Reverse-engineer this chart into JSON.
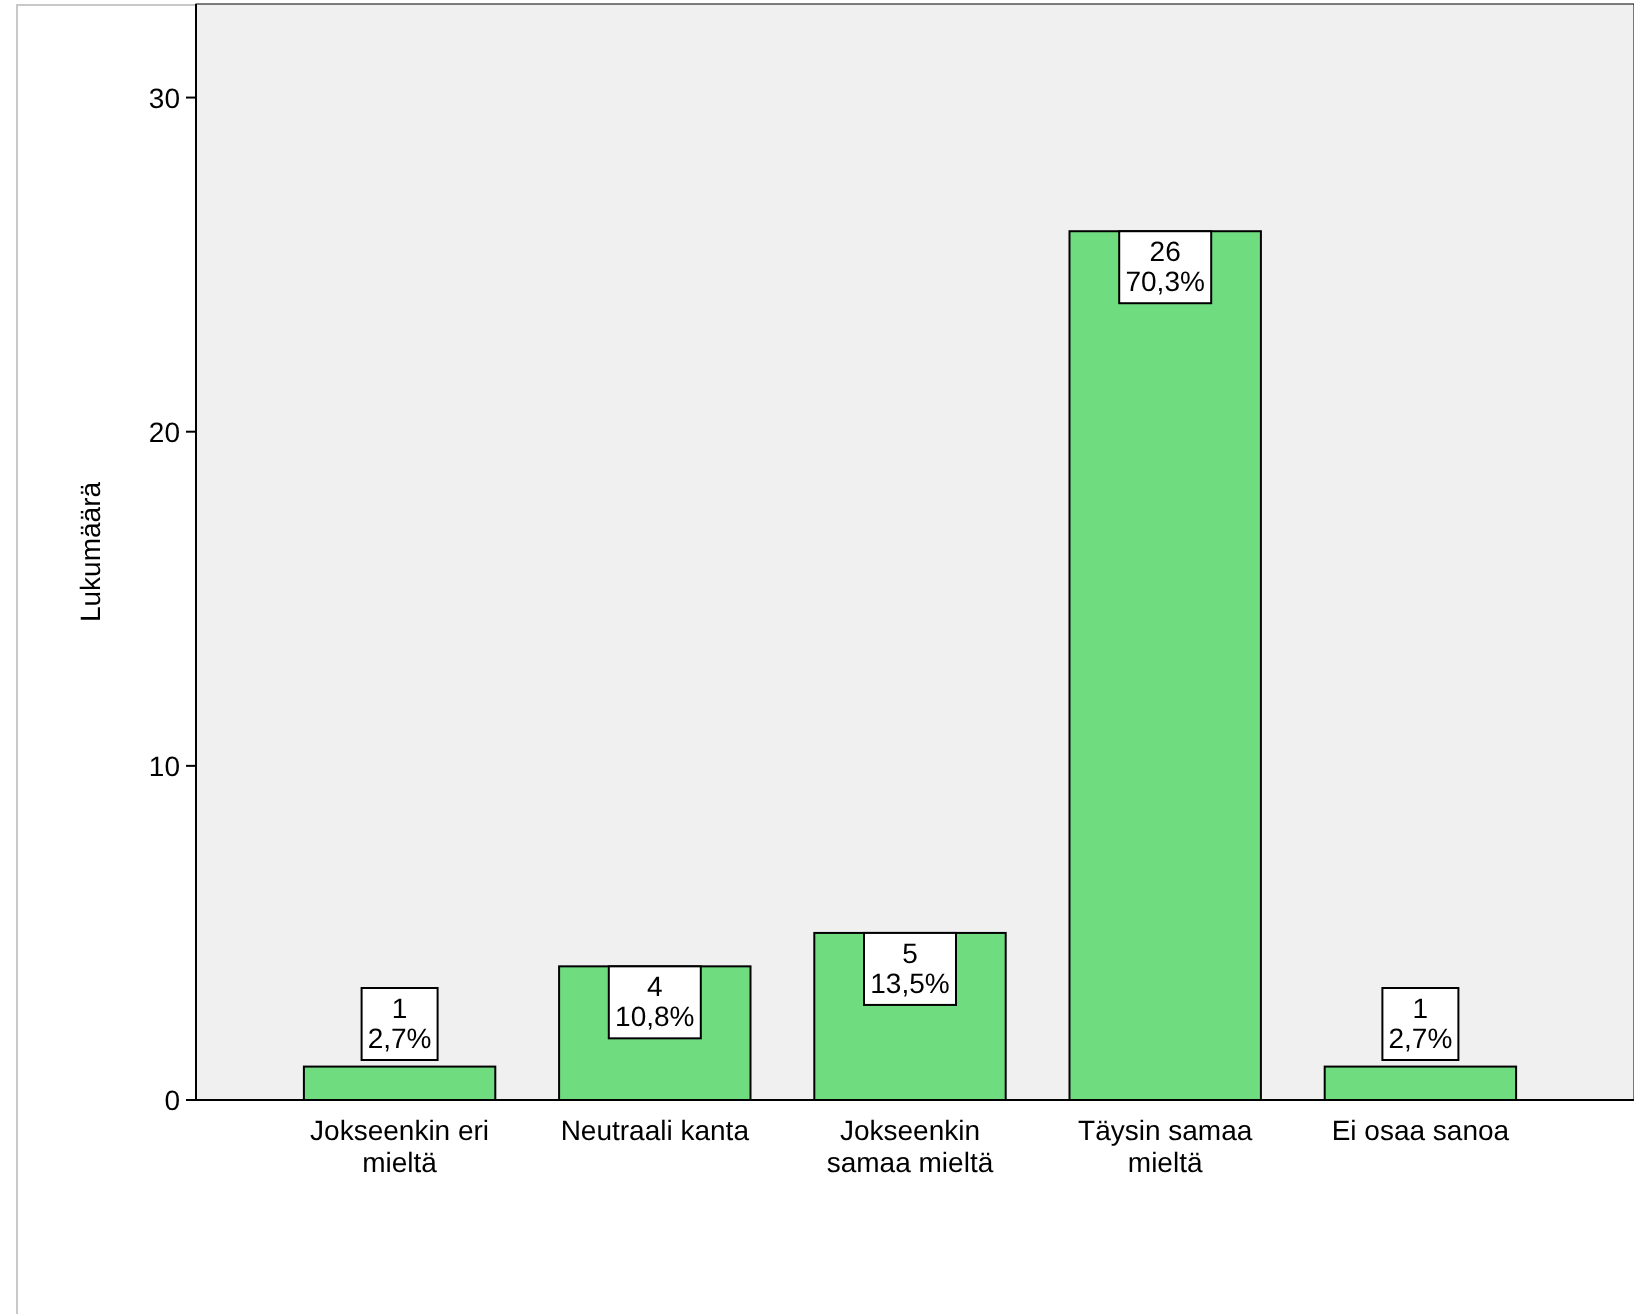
{
  "chart_data": {
    "type": "bar",
    "ylabel": "Lukumäärä",
    "categories": [
      "Jokseenkin eri mieltä",
      "Neutraali kanta",
      "Jokseenkin samaa mieltä",
      "Täysin samaa mieltä",
      "Ei osaa sanoa"
    ],
    "values": [
      1,
      4,
      5,
      26,
      1
    ],
    "value_labels": [
      "1\n2,7%",
      "4\n10,8%",
      "5\n13,5%",
      "26\n70,3%",
      "1\n2,7%"
    ],
    "color": "#70dc80",
    "ylim": [
      0,
      32.8
    ],
    "yticks": [
      0,
      10,
      20,
      30
    ],
    "grid": false
  }
}
